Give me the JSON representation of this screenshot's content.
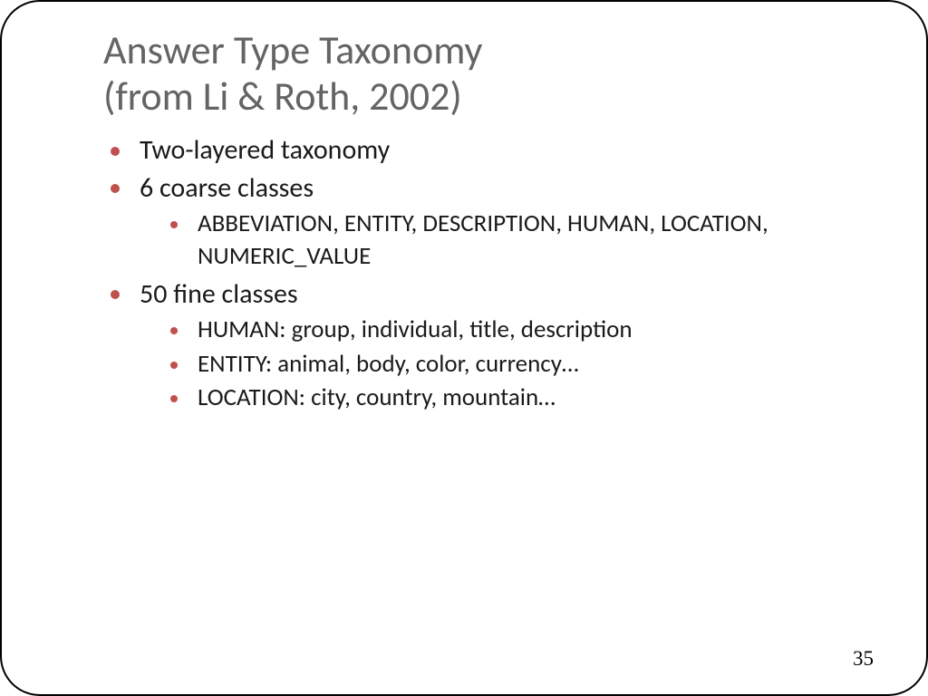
{
  "colors": {
    "title": "#646464",
    "body_text": "#1a1a1a",
    "bullet": "#c0504d",
    "background": "#ffffff",
    "border": "#000000"
  },
  "typography": {
    "title_fontsize": 44,
    "level1_fontsize": 30,
    "level2_fontsize": 27,
    "pagenum_fontsize": 23,
    "title_font": "Calibri",
    "body_font": "Calibri",
    "pagenum_font": "Times New Roman"
  },
  "layout": {
    "slide_width": 1024,
    "slide_height": 768,
    "border_radius": 44,
    "border_width": 2
  },
  "title": {
    "line1": "Answer Type Taxonomy",
    "line2": "(from Li & Roth, 2002)"
  },
  "bullets": [
    {
      "text": "Two-layered taxonomy",
      "children": []
    },
    {
      "text": "6 coarse classes",
      "children": [
        "ABBEVIATION, ENTITY, DESCRIPTION, HUMAN, LOCATION, NUMERIC_VALUE"
      ]
    },
    {
      "text": "50 fine classes",
      "children": [
        "HUMAN: group, individual, title, description",
        "ENTITY: animal, body, color, currency…",
        "LOCATION: city, country, mountain…"
      ]
    }
  ],
  "page_number": "35"
}
